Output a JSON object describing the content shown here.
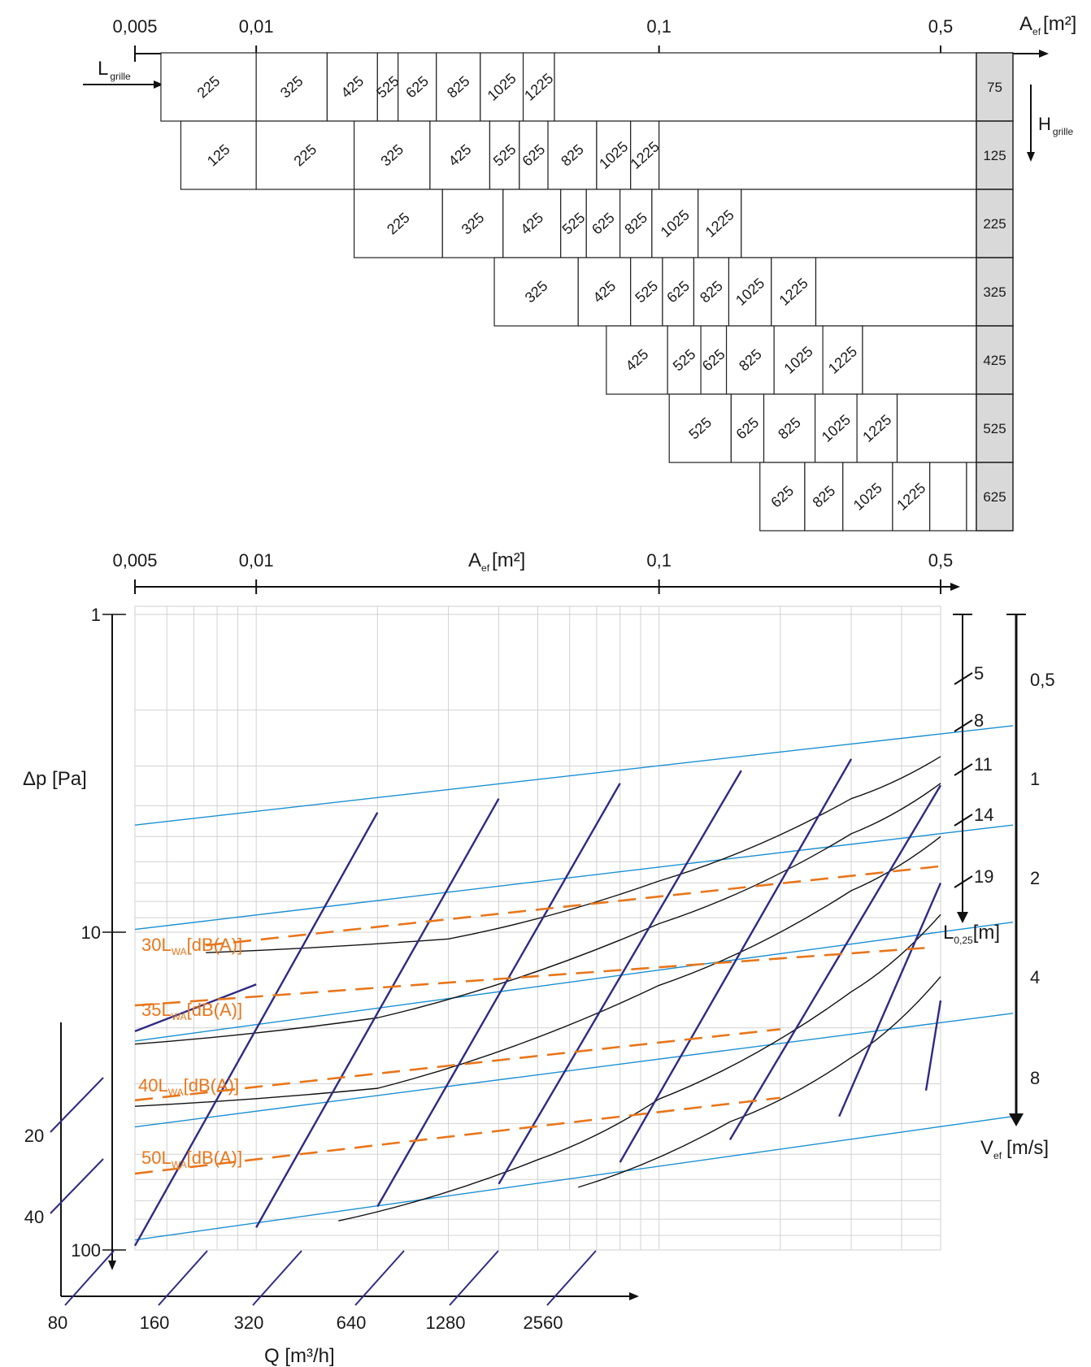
{
  "chart_data": {
    "type": "nomogram",
    "top_scale": {
      "label_main": "A",
      "label_sub": "ef",
      "unit": "[m²]",
      "ticks": [
        "0,005",
        "0,01",
        "0,1",
        "0,5"
      ],
      "tick_values": [
        0.005,
        0.01,
        0.1,
        0.5
      ]
    },
    "grille_length_label": {
      "main": "L",
      "sub": "grille"
    },
    "grille_height_label": {
      "main": "H",
      "sub": "grille"
    },
    "grille_table": {
      "heights": [
        "75",
        "125",
        "225",
        "325",
        "425",
        "525",
        "625"
      ],
      "rows": [
        {
          "cells": [
            {
              "l": "225",
              "a0": 0.0058,
              "a1": 0.01
            },
            {
              "l": "325",
              "a0": 0.01,
              "a1": 0.015
            },
            {
              "l": "425",
              "a0": 0.015,
              "a1": 0.02
            },
            {
              "l": "525",
              "a0": 0.02,
              "a1": 0.0225
            },
            {
              "l": "625",
              "a0": 0.0225,
              "a1": 0.028
            },
            {
              "l": "825",
              "a0": 0.028,
              "a1": 0.036
            },
            {
              "l": "1025",
              "a0": 0.036,
              "a1": 0.046
            },
            {
              "l": "1225",
              "a0": 0.046,
              "a1": 0.055
            }
          ]
        },
        {
          "cells": [
            {
              "l": "125",
              "a0": 0.0065,
              "a1": 0.01
            },
            {
              "l": "225",
              "a0": 0.01,
              "a1": 0.0175
            },
            {
              "l": "325",
              "a0": 0.0175,
              "a1": 0.027
            },
            {
              "l": "425",
              "a0": 0.027,
              "a1": 0.038
            },
            {
              "l": "525",
              "a0": 0.038,
              "a1": 0.045
            },
            {
              "l": "625",
              "a0": 0.045,
              "a1": 0.053
            },
            {
              "l": "825",
              "a0": 0.053,
              "a1": 0.07
            },
            {
              "l": "1025",
              "a0": 0.07,
              "a1": 0.085
            },
            {
              "l": "1225",
              "a0": 0.085,
              "a1": 0.1
            }
          ]
        },
        {
          "cells": [
            {
              "l": "225",
              "a0": 0.0175,
              "a1": 0.029
            },
            {
              "l": "325",
              "a0": 0.029,
              "a1": 0.041
            },
            {
              "l": "425",
              "a0": 0.041,
              "a1": 0.057
            },
            {
              "l": "525",
              "a0": 0.057,
              "a1": 0.066
            },
            {
              "l": "625",
              "a0": 0.066,
              "a1": 0.08
            },
            {
              "l": "825",
              "a0": 0.08,
              "a1": 0.096
            },
            {
              "l": "1025",
              "a0": 0.096,
              "a1": 0.125
            },
            {
              "l": "1225",
              "a0": 0.125,
              "a1": 0.16
            }
          ]
        },
        {
          "cells": [
            {
              "l": "325",
              "a0": 0.039,
              "a1": 0.063
            },
            {
              "l": "425",
              "a0": 0.063,
              "a1": 0.085
            },
            {
              "l": "525",
              "a0": 0.085,
              "a1": 0.102
            },
            {
              "l": "625",
              "a0": 0.102,
              "a1": 0.122
            },
            {
              "l": "825",
              "a0": 0.122,
              "a1": 0.149
            },
            {
              "l": "1025",
              "a0": 0.149,
              "a1": 0.19
            },
            {
              "l": "1225",
              "a0": 0.19,
              "a1": 0.245
            }
          ]
        },
        {
          "cells": [
            {
              "l": "425",
              "a0": 0.074,
              "a1": 0.105
            },
            {
              "l": "525",
              "a0": 0.105,
              "a1": 0.127
            },
            {
              "l": "625",
              "a0": 0.127,
              "a1": 0.147
            },
            {
              "l": "825",
              "a0": 0.147,
              "a1": 0.193
            },
            {
              "l": "1025",
              "a0": 0.193,
              "a1": 0.255
            },
            {
              "l": "1225",
              "a0": 0.255,
              "a1": 0.32
            }
          ]
        },
        {
          "cells": [
            {
              "l": "525",
              "a0": 0.106,
              "a1": 0.151
            },
            {
              "l": "625",
              "a0": 0.151,
              "a1": 0.182
            },
            {
              "l": "825",
              "a0": 0.182,
              "a1": 0.244
            },
            {
              "l": "1025",
              "a0": 0.244,
              "a1": 0.31
            },
            {
              "l": "1225",
              "a0": 0.31,
              "a1": 0.39
            }
          ]
        },
        {
          "cells": [
            {
              "l": "625",
              "a0": 0.178,
              "a1": 0.23
            },
            {
              "l": "825",
              "a0": 0.23,
              "a1": 0.286
            },
            {
              "l": "1025",
              "a0": 0.286,
              "a1": 0.38
            },
            {
              "l": "1225",
              "a0": 0.38,
              "a1": 0.47
            },
            {
              "l": "",
              "a0": 0.47,
              "a1": 0.58
            }
          ]
        }
      ]
    },
    "pressure_axis": {
      "label": "Δp [Pa]",
      "ticks": [
        "1",
        "10",
        "100"
      ],
      "tick_values": [
        1,
        10,
        100
      ],
      "scale": "log"
    },
    "flow_axis": {
      "label": "Q [m³/h]",
      "ticks": [
        "80",
        "160",
        "320",
        "640",
        "1280",
        "2560"
      ],
      "tick_values": [
        80,
        160,
        320,
        640,
        1280,
        2560
      ],
      "extra_ticks": [
        "20",
        "40"
      ],
      "extra_tick_values": [
        20,
        40
      ]
    },
    "throw_scale": {
      "label_main": "L",
      "label_sub": "0,25",
      "unit": "[m]",
      "ticks": [
        "5",
        "8",
        "11",
        "14",
        "19"
      ]
    },
    "velocity_scale": {
      "label_main": "V",
      "label_sub": "ef",
      "unit": "[m/s]",
      "ticks": [
        "0,5",
        "1",
        "2",
        "4",
        "8"
      ]
    },
    "noise_labels": [
      {
        "main": "30L",
        "sub": "WA",
        "tail": "[dB(A)]"
      },
      {
        "main": "35L",
        "sub": "WA",
        "tail": "[dB(A)]"
      },
      {
        "main": "40L",
        "sub": "WA",
        "tail": "[dB(A)]"
      },
      {
        "main": "50L",
        "sub": "WA",
        "tail": "[dB(A)]"
      }
    ],
    "velocity_lines": [
      {
        "v": "0,5",
        "p0": 4.6,
        "p1": 2.24
      },
      {
        "v": "1",
        "p0": 9.8,
        "p1": 4.6
      },
      {
        "v": "2",
        "p0": 22,
        "p1": 9.3
      },
      {
        "v": "4",
        "p0": 41,
        "p1": 18
      },
      {
        "v": "8",
        "p0": 93,
        "p1": 38
      }
    ],
    "noise_lines": [
      {
        "db": "30",
        "a0": 0.0075,
        "p0": 11.0,
        "a1": 0.5,
        "p1": 6.2
      },
      {
        "db": "35",
        "a0": 0.005,
        "p0": 17.0,
        "a1": 0.46,
        "p1": 11.2
      },
      {
        "db": "40",
        "a0": 0.005,
        "p0": 33.8,
        "a1": 0.2,
        "p1": 20.2
      },
      {
        "db": "50",
        "a0": 0.005,
        "p0": 57.5,
        "a1": 0.2,
        "p1": 33.2
      }
    ],
    "flow_lines": [
      {
        "a0": 0.005,
        "p0": 20.5,
        "a1": 0.01,
        "p1": 14.6
      },
      {
        "a0": 0.005,
        "p0": 97,
        "a1": 0.02,
        "p1": 4.2
      },
      {
        "a0": 0.01,
        "p0": 85,
        "a1": 0.04,
        "p1": 3.8
      },
      {
        "a0": 0.02,
        "p0": 73,
        "a1": 0.08,
        "p1": 3.4
      },
      {
        "a0": 0.04,
        "p0": 62,
        "a1": 0.16,
        "p1": 3.1
      },
      {
        "a0": 0.08,
        "p0": 53,
        "a1": 0.3,
        "p1": 2.85
      },
      {
        "a0": 0.15,
        "p0": 45,
        "a1": 0.5,
        "p1": 3.45
      },
      {
        "a0": 0.28,
        "p0": 38,
        "a1": 0.5,
        "p1": 7.0
      },
      {
        "a0": 0.46,
        "p0": 31.5,
        "a1": 0.5,
        "p1": 16.4
      }
    ],
    "throw_curves": [
      {
        "pts": [
          [
            0.0075,
            11.6
          ],
          [
            0.03,
            10.5
          ],
          [
            0.1,
            6.9
          ],
          [
            0.3,
            3.8
          ],
          [
            0.5,
            2.8
          ]
        ]
      },
      {
        "pts": [
          [
            0.005,
            22.5
          ],
          [
            0.02,
            18.6
          ],
          [
            0.1,
            9.4
          ],
          [
            0.3,
            4.9
          ],
          [
            0.5,
            3.4
          ]
        ]
      },
      {
        "pts": [
          [
            0.005,
            35.3
          ],
          [
            0.02,
            31.0
          ],
          [
            0.1,
            14.7
          ],
          [
            0.3,
            7.4
          ],
          [
            0.5,
            5.0
          ]
        ]
      },
      {
        "pts": [
          [
            0.016,
            81
          ],
          [
            0.05,
            52
          ],
          [
            0.1,
            33.5
          ],
          [
            0.3,
            15.4
          ],
          [
            0.5,
            8.8
          ]
        ]
      },
      {
        "pts": [
          [
            0.063,
            63.5
          ],
          [
            0.15,
            39.5
          ],
          [
            0.3,
            24.8
          ],
          [
            0.5,
            13.8
          ]
        ]
      }
    ]
  }
}
